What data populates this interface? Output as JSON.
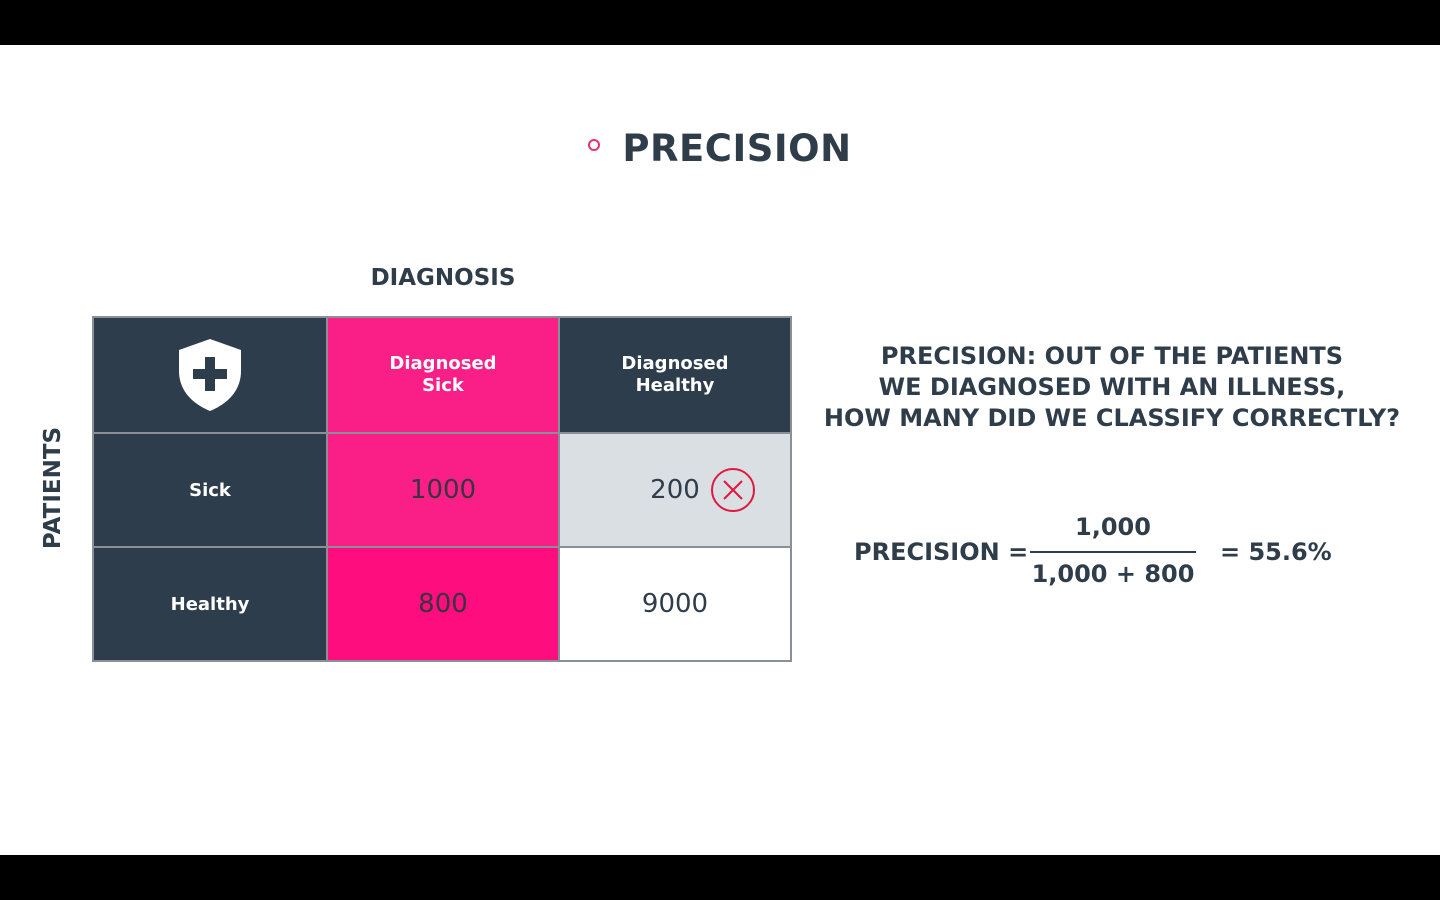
{
  "title": "PRECISION",
  "matrix": {
    "column_axis_label": "DIAGNOSIS",
    "row_axis_label": "PATIENTS",
    "columns": [
      "Diagnosed Sick",
      "Diagnosed Healthy"
    ],
    "column_lines": [
      [
        "Diagnosed",
        "Sick"
      ],
      [
        "Diagnosed",
        "Healthy"
      ]
    ],
    "rows": [
      {
        "label": "Sick",
        "values": [
          "1000",
          "200"
        ]
      },
      {
        "label": "Healthy",
        "values": [
          "800",
          "9000"
        ]
      }
    ],
    "header_icon": "shield-plus-icon",
    "mark_icon": "x-circle-icon"
  },
  "description": {
    "lines": [
      "PRECISION: OUT OF THE PATIENTS",
      "WE DIAGNOSED WITH AN ILLNESS,",
      "HOW MANY DID WE CLASSIFY CORRECTLY?"
    ]
  },
  "formula": {
    "label": "PRECISION =",
    "numerator": "1,000",
    "denominator": "1,000 + 800",
    "result": "= 55.6%"
  },
  "colors": {
    "dark": "#2e3d4b",
    "pink": "#fa1f86",
    "pink_deep": "#fd0d7d",
    "grey": "#d9dfe3",
    "mark_red": "#e3173f"
  }
}
